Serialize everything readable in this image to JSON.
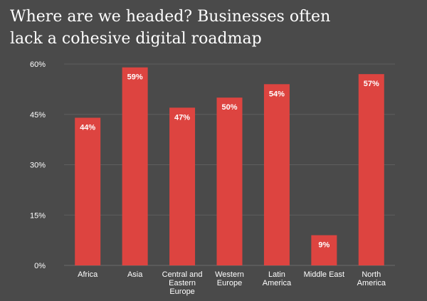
{
  "chart_data": {
    "type": "bar",
    "title_lines": [
      "Where are we headed? Businesses often",
      "lack a cohesive digital roadmap"
    ],
    "xlabel": "",
    "ylabel": "",
    "categories": [
      [
        "Africa"
      ],
      [
        "Asia"
      ],
      [
        "Central and",
        "Eastern",
        "Europe"
      ],
      [
        "Western",
        "Europe"
      ],
      [
        "Latin",
        "America"
      ],
      [
        "Middle East"
      ],
      [
        "North",
        "America"
      ]
    ],
    "values": [
      44,
      59,
      47,
      50,
      54,
      9,
      57
    ],
    "value_labels": [
      "44%",
      "59%",
      "47%",
      "50%",
      "54%",
      "9%",
      "57%"
    ],
    "ylim": [
      0,
      60
    ],
    "yticks": [
      0,
      15,
      30,
      45,
      60
    ],
    "ytick_labels": [
      "0%",
      "15%",
      "30%",
      "45%",
      "60%"
    ],
    "grid": true,
    "legend": "none",
    "colors": {
      "bar": "#dd4440",
      "background": "#4a4a4a",
      "text": "#ffffff"
    }
  }
}
